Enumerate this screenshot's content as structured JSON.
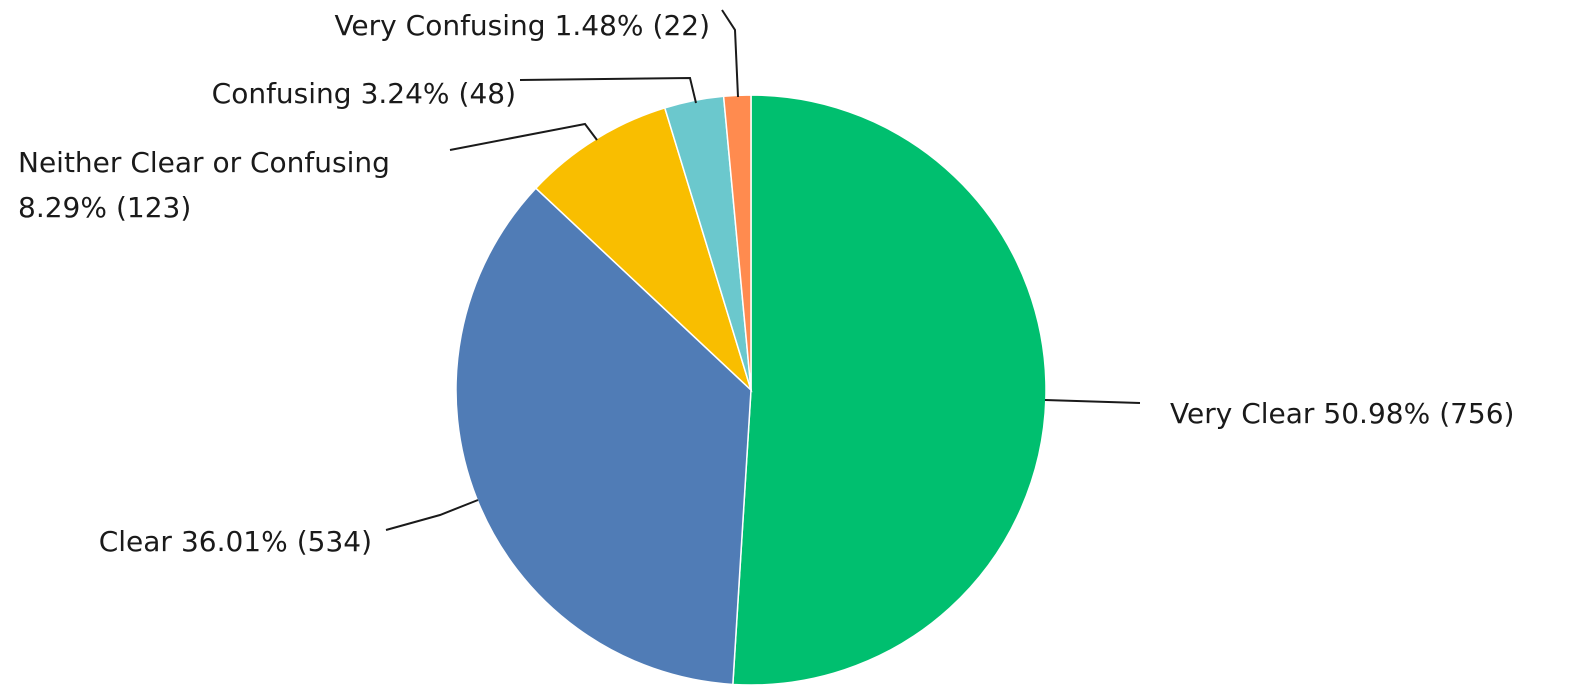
{
  "chart_data": {
    "type": "pie",
    "categories": [
      "Very Clear",
      "Clear",
      "Neither Clear or Confusing",
      "Confusing",
      "Very Confusing"
    ],
    "values": [
      50.98,
      36.01,
      8.29,
      3.24,
      1.48
    ],
    "value_labels": [
      "50.98%",
      "36.01%",
      "8.29%",
      "3.24%",
      "1.48%"
    ],
    "count_labels": [
      "(756)",
      "(534)",
      "(123)",
      "(48)",
      "(22)"
    ],
    "colors": [
      "#00bf6f",
      "#507cb6",
      "#f9be00",
      "#6bc8cd",
      "#ff8b4f"
    ]
  }
}
